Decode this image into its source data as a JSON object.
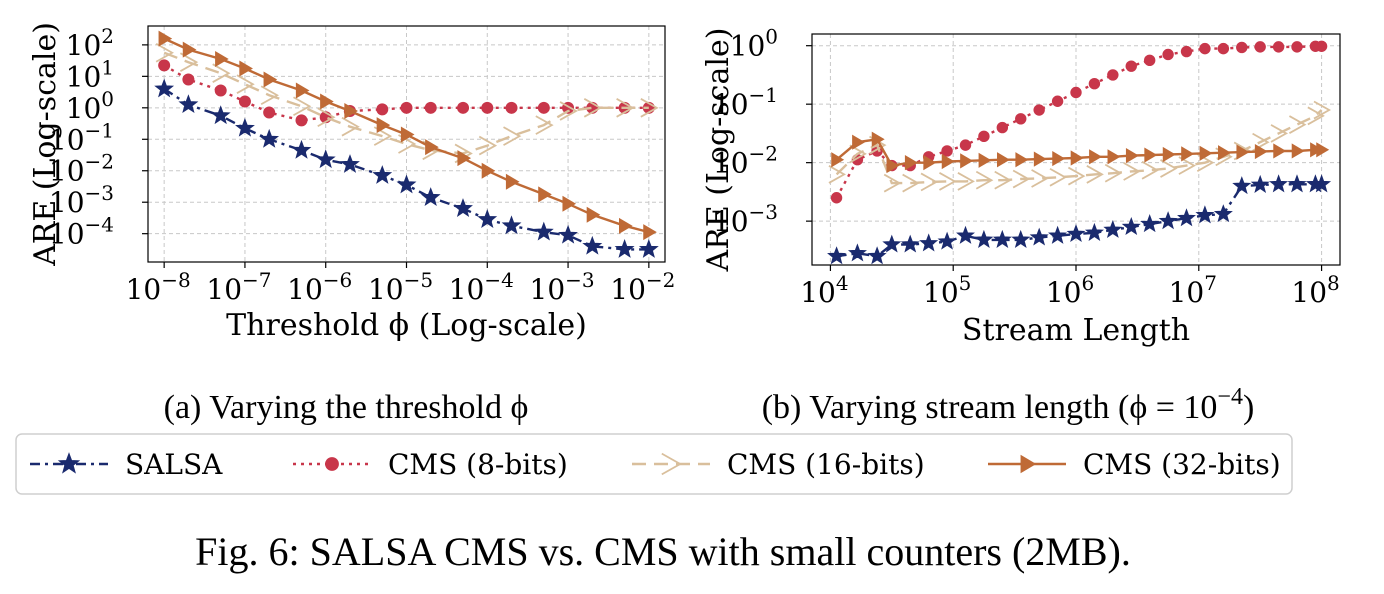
{
  "colors": {
    "salsa": "#1a2a6e",
    "cms8": "#c8364a",
    "cms16": "#d9bf9c",
    "cms32": "#bf6a36",
    "grid": "#c8c8c8"
  },
  "legend": [
    "SALSA",
    "CMS (8-bits)",
    "CMS (16-bits)",
    "CMS (32-bits)"
  ],
  "caption_a": "(a) Varying the threshold ϕ",
  "caption_b_prefix": "(b) Varying stream length (ϕ = 10",
  "caption_b_exp": "−4",
  "caption_b_suffix": ")",
  "figure_caption": "Fig. 6: SALSA CMS vs. CMS with small counters (2MB).",
  "chart_data": [
    {
      "type": "line",
      "xlabel": "Threshold ϕ (Log-scale)",
      "ylabel": "ARE (Log-scale)",
      "xscale": "log",
      "yscale": "log",
      "grid": true,
      "xlim_exp": [
        -8.2,
        -1.8
      ],
      "ylim_exp": [
        -4.9,
        2.6
      ],
      "xticks_exp": [
        -8,
        -7,
        -6,
        -5,
        -4,
        -3,
        -2
      ],
      "yticks_exp": [
        2,
        1,
        0,
        -1,
        -2,
        -3,
        -4
      ],
      "x_exp": [
        -8,
        -7.7,
        -7.3,
        -7,
        -6.7,
        -6.3,
        -6,
        -5.7,
        -5.3,
        -5,
        -4.7,
        -4.3,
        -4,
        -3.7,
        -3.3,
        -3,
        -2.7,
        -2.3,
        -2
      ],
      "series": [
        {
          "name": "SALSA",
          "marker": "star",
          "y_exp": [
            0.6,
            0.1,
            -0.25,
            -0.65,
            -1.0,
            -1.35,
            -1.65,
            -1.8,
            -2.15,
            -2.45,
            -2.85,
            -3.2,
            -3.55,
            -3.75,
            -3.95,
            -4.05,
            -4.4,
            -4.5,
            -4.5
          ]
        },
        {
          "name": "CMS (8-bits)",
          "marker": "circle",
          "y_exp": [
            1.35,
            0.9,
            0.55,
            0.2,
            -0.15,
            -0.4,
            -0.3,
            -0.1,
            -0.05,
            0.0,
            0.0,
            0.0,
            0.0,
            0.0,
            0.0,
            0.0,
            0.0,
            0.0,
            0.0
          ]
        },
        {
          "name": "CMS (16-bits)",
          "marker": "tri_right",
          "y_exp": [
            1.75,
            1.45,
            1.1,
            0.75,
            0.4,
            0.05,
            -0.3,
            -0.6,
            -0.9,
            -1.15,
            -1.35,
            -1.45,
            -1.2,
            -0.9,
            -0.55,
            -0.1,
            0.0,
            0.0,
            0.0
          ]
        },
        {
          "name": "CMS (32-bits)",
          "marker": "tri_right_filled",
          "y_exp": [
            2.2,
            1.85,
            1.55,
            1.25,
            0.9,
            0.55,
            0.2,
            -0.1,
            -0.55,
            -0.85,
            -1.25,
            -1.6,
            -2.0,
            -2.35,
            -2.75,
            -3.05,
            -3.4,
            -3.75,
            -3.95
          ]
        }
      ]
    },
    {
      "type": "line",
      "xlabel": "Stream Length",
      "ylabel": "ARE (Log-scale)",
      "xscale": "log",
      "yscale": "log",
      "grid": true,
      "xlim_exp": [
        3.85,
        8.15
      ],
      "ylim_exp": [
        -3.75,
        0.2
      ],
      "xticks_exp": [
        4,
        5,
        6,
        7,
        8
      ],
      "yticks_exp": [
        0,
        -1,
        -2,
        -3
      ],
      "x_exp": [
        4.05,
        4.22,
        4.38,
        4.5,
        4.65,
        4.8,
        4.95,
        5.1,
        5.25,
        5.4,
        5.55,
        5.7,
        5.85,
        6.0,
        6.15,
        6.3,
        6.45,
        6.6,
        6.75,
        6.9,
        7.05,
        7.2,
        7.35,
        7.5,
        7.65,
        7.8,
        7.95,
        8.0
      ],
      "series": [
        {
          "name": "SALSA",
          "marker": "star",
          "y_exp": [
            -3.6,
            -3.55,
            -3.6,
            -3.4,
            -3.4,
            -3.38,
            -3.35,
            -3.25,
            -3.32,
            -3.32,
            -3.32,
            -3.28,
            -3.25,
            -3.22,
            -3.2,
            -3.15,
            -3.1,
            -3.05,
            -3.0,
            -2.95,
            -2.9,
            -2.88,
            -2.4,
            -2.38,
            -2.37,
            -2.37,
            -2.37,
            -2.37
          ]
        },
        {
          "name": "CMS (8-bits)",
          "marker": "circle",
          "y_exp": [
            -2.6,
            -1.95,
            -1.8,
            -2.05,
            -2.05,
            -1.9,
            -1.8,
            -1.7,
            -1.55,
            -1.4,
            -1.25,
            -1.1,
            -0.95,
            -0.8,
            -0.65,
            -0.5,
            -0.35,
            -0.25,
            -0.15,
            -0.1,
            -0.05,
            -0.05,
            -0.03,
            -0.02,
            -0.02,
            -0.02,
            -0.01,
            -0.01
          ]
        },
        {
          "name": "CMS (16-bits)",
          "marker": "tri_right",
          "y_exp": [
            -2.2,
            -1.85,
            -1.7,
            -2.35,
            -2.35,
            -2.33,
            -2.32,
            -2.32,
            -2.3,
            -2.3,
            -2.28,
            -2.27,
            -2.25,
            -2.23,
            -2.2,
            -2.18,
            -2.15,
            -2.13,
            -2.1,
            -2.05,
            -2.0,
            -1.9,
            -1.8,
            -1.65,
            -1.5,
            -1.35,
            -1.2,
            -1.1
          ]
        },
        {
          "name": "CMS (32-bits)",
          "marker": "tri_right_filled",
          "y_exp": [
            -1.95,
            -1.65,
            -1.6,
            -2.05,
            -2.0,
            -2.0,
            -1.98,
            -1.97,
            -1.96,
            -1.95,
            -1.95,
            -1.94,
            -1.93,
            -1.92,
            -1.9,
            -1.9,
            -1.88,
            -1.87,
            -1.86,
            -1.85,
            -1.84,
            -1.83,
            -1.82,
            -1.81,
            -1.8,
            -1.8,
            -1.78,
            -1.78
          ]
        }
      ]
    }
  ]
}
